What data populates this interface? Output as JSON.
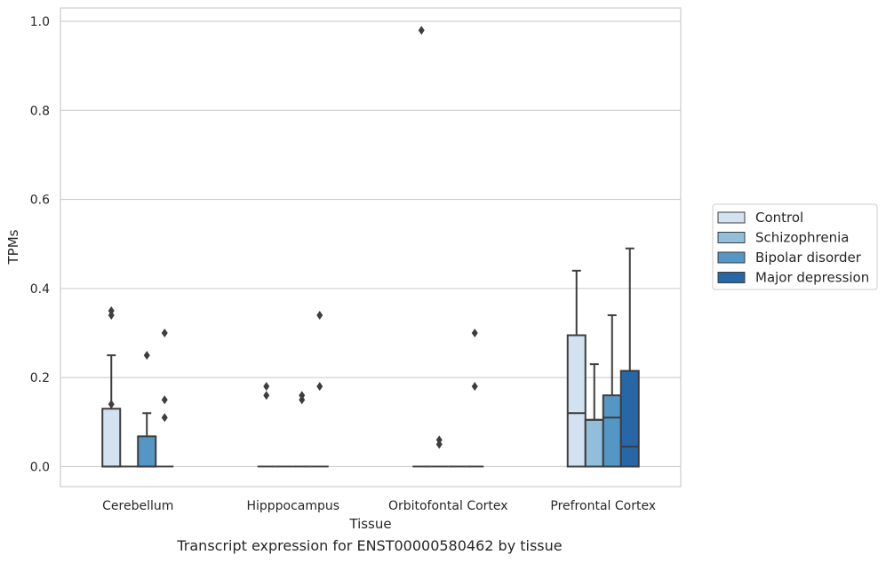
{
  "caption": "Transcript expression for ENST00000580462 by tissue",
  "chart_data": {
    "type": "box",
    "xlabel": "Tissue",
    "ylabel": "TPMs",
    "ylim": [
      -0.045,
      1.03
    ],
    "yticks": [
      0.0,
      0.2,
      0.4,
      0.6,
      0.8,
      1.0
    ],
    "ytick_labels": [
      "0.0",
      "0.2",
      "0.4",
      "0.6",
      "0.8",
      "1.0"
    ],
    "grid": "horizontal",
    "categories": [
      "Cerebellum",
      "Hipppocampus",
      "Orbitofontal Cortex",
      "Prefrontal Cortex"
    ],
    "legend_position": "outside-right",
    "series": [
      {
        "name": "Control",
        "color": "#d2e2f0",
        "boxes": [
          {
            "q1": 0.0,
            "median": 0.0,
            "q3": 0.13,
            "whislo": 0.0,
            "whishi": 0.25,
            "fliers": [
              0.14,
              0.34,
              0.35
            ]
          },
          {
            "q1": 0.0,
            "median": 0.0,
            "q3": 0.0,
            "whislo": 0.0,
            "whishi": 0.0,
            "fliers": [
              0.16,
              0.18
            ]
          },
          {
            "q1": 0.0,
            "median": 0.0,
            "q3": 0.0,
            "whislo": 0.0,
            "whishi": 0.0,
            "fliers": [
              0.98
            ]
          },
          {
            "q1": 0.0,
            "median": 0.12,
            "q3": 0.295,
            "whislo": 0.0,
            "whishi": 0.44,
            "fliers": []
          }
        ]
      },
      {
        "name": "Schizophrenia",
        "color": "#92bedc",
        "boxes": [
          {
            "q1": 0.0,
            "median": 0.0,
            "q3": 0.0,
            "whislo": 0.0,
            "whishi": 0.0,
            "fliers": []
          },
          {
            "q1": 0.0,
            "median": 0.0,
            "q3": 0.0,
            "whislo": 0.0,
            "whishi": 0.0,
            "fliers": []
          },
          {
            "q1": 0.0,
            "median": 0.0,
            "q3": 0.0,
            "whislo": 0.0,
            "whishi": 0.0,
            "fliers": [
              0.05,
              0.06
            ]
          },
          {
            "q1": 0.0,
            "median": 0.105,
            "q3": 0.105,
            "whislo": 0.0,
            "whishi": 0.23,
            "fliers": []
          }
        ]
      },
      {
        "name": "Bipolar disorder",
        "color": "#5496c4",
        "boxes": [
          {
            "q1": 0.0,
            "median": 0.0,
            "q3": 0.068,
            "whislo": 0.0,
            "whishi": 0.12,
            "fliers": [
              0.25
            ]
          },
          {
            "q1": 0.0,
            "median": 0.0,
            "q3": 0.0,
            "whislo": 0.0,
            "whishi": 0.0,
            "fliers": [
              0.15,
              0.16
            ]
          },
          {
            "q1": 0.0,
            "median": 0.0,
            "q3": 0.0,
            "whislo": 0.0,
            "whishi": 0.0,
            "fliers": []
          },
          {
            "q1": 0.0,
            "median": 0.11,
            "q3": 0.16,
            "whislo": 0.0,
            "whishi": 0.34,
            "fliers": []
          }
        ]
      },
      {
        "name": "Major depression",
        "color": "#2867a7",
        "boxes": [
          {
            "q1": 0.0,
            "median": 0.0,
            "q3": 0.0,
            "whislo": 0.0,
            "whishi": 0.0,
            "fliers": [
              0.11,
              0.15,
              0.3
            ]
          },
          {
            "q1": 0.0,
            "median": 0.0,
            "q3": 0.0,
            "whislo": 0.0,
            "whishi": 0.0,
            "fliers": [
              0.18,
              0.34
            ]
          },
          {
            "q1": 0.0,
            "median": 0.0,
            "q3": 0.0,
            "whislo": 0.0,
            "whishi": 0.0,
            "fliers": [
              0.18,
              0.3
            ]
          },
          {
            "q1": 0.0,
            "median": 0.045,
            "q3": 0.215,
            "whislo": 0.0,
            "whishi": 0.49,
            "fliers": []
          }
        ]
      }
    ]
  }
}
